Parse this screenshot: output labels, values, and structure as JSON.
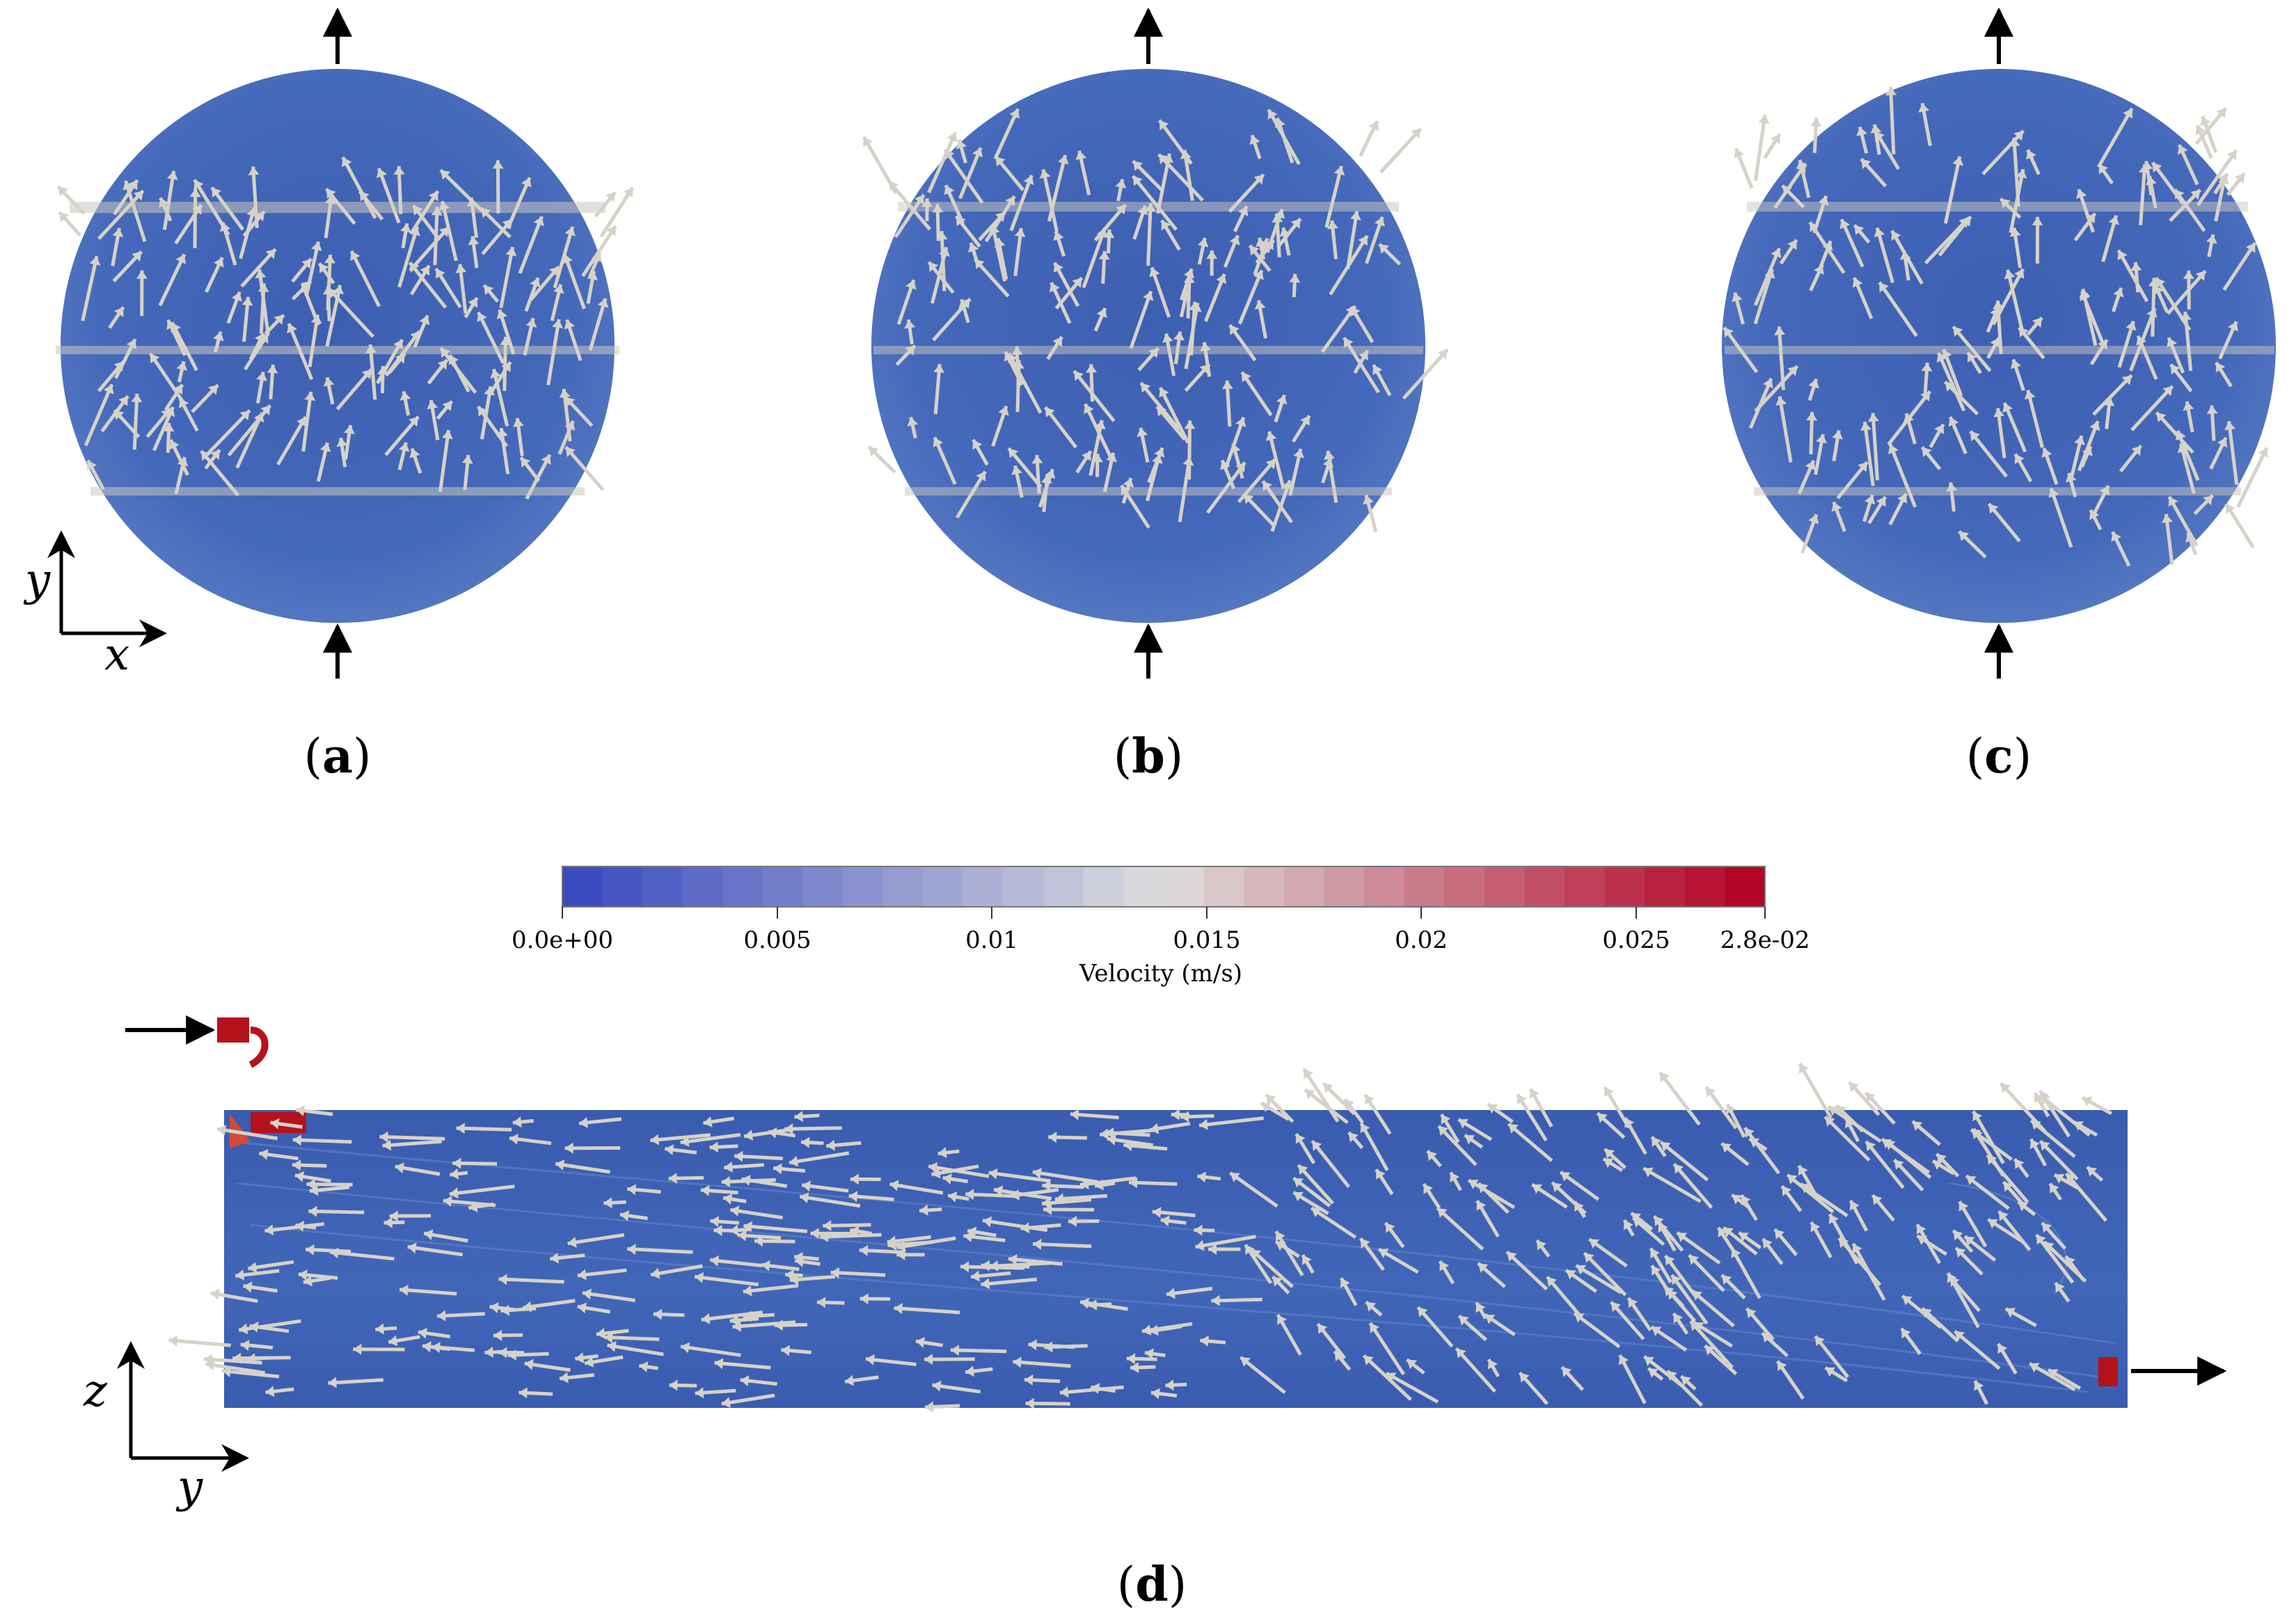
{
  "panels": {
    "a": {
      "label": "a",
      "open": "(",
      "close": ")"
    },
    "b": {
      "label": "b",
      "open": "(",
      "close": ")"
    },
    "c": {
      "label": "c",
      "open": "(",
      "close": ")"
    },
    "d": {
      "label": "d",
      "open": "(",
      "close": ")"
    }
  },
  "axes_top": {
    "vertical": "y",
    "horizontal": "x"
  },
  "axes_bottom": {
    "vertical": "z",
    "horizontal": "y"
  },
  "colorbar": {
    "title": "Velocity (m/s)",
    "ticks": [
      "0.0e+00",
      "0.005",
      "0.01",
      "0.015",
      "0.02",
      "0.025",
      "2.8e-02"
    ],
    "range": [
      0,
      0.028
    ],
    "color_low": "#3b4cc0",
    "color_mid": "#dddddd",
    "color_high": "#b40426"
  },
  "colors": {
    "field": "#3f63b5",
    "field_dark": "#2e4f9e",
    "vector": "#d6d2c8",
    "arrow": "#000000",
    "hot": "#b5121b"
  }
}
